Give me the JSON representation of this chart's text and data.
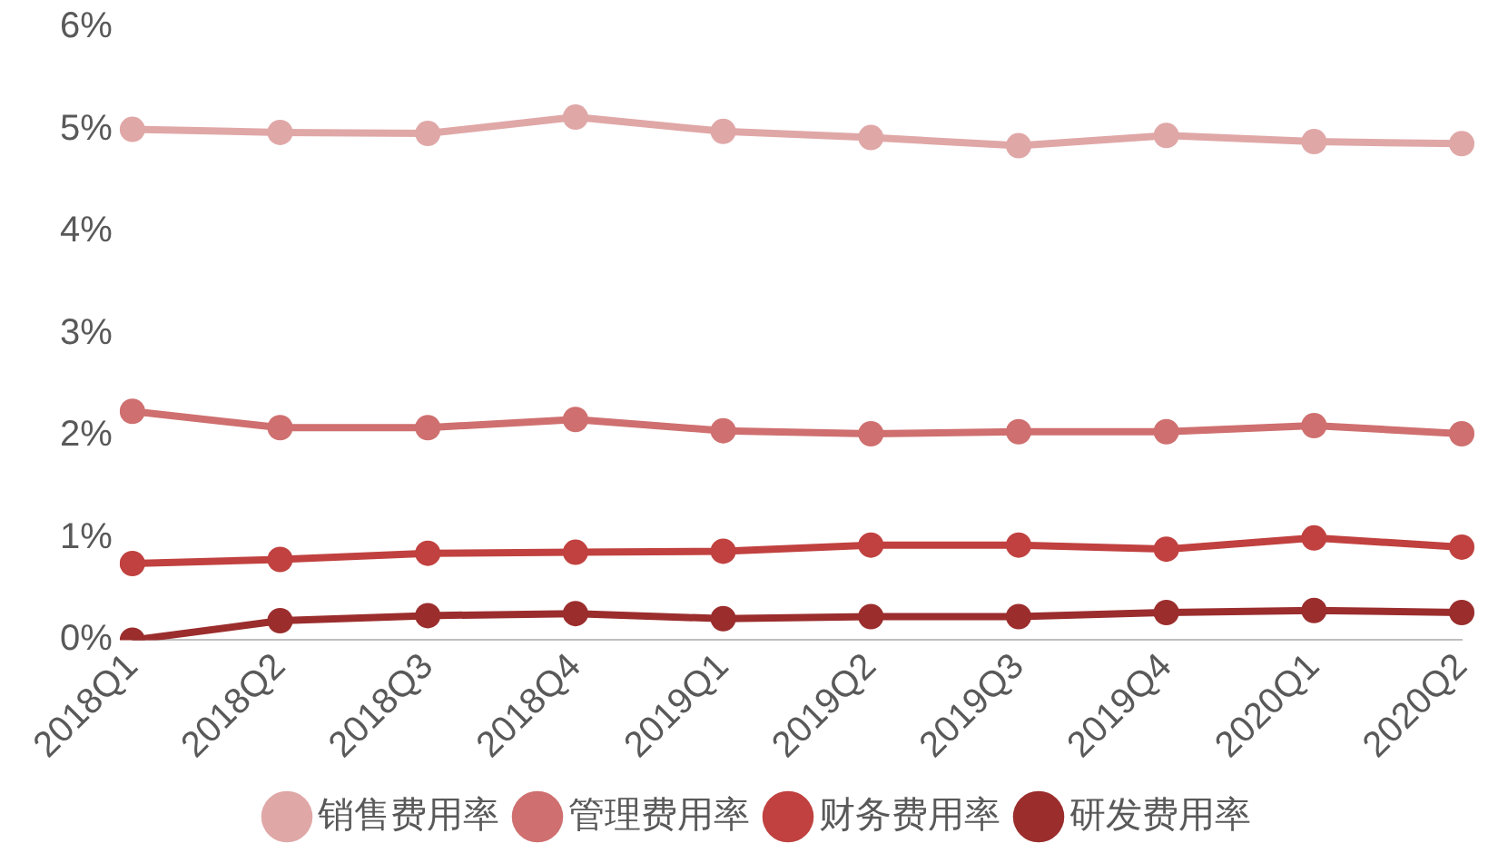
{
  "chart_data": {
    "type": "line",
    "categories": [
      "2018Q1",
      "2018Q2",
      "2018Q3",
      "2018Q4",
      "2019Q1",
      "2019Q2",
      "2019Q3",
      "2019Q4",
      "2020Q1",
      "2020Q2"
    ],
    "series": [
      {
        "name": "销售费用率",
        "color": "#e0a7a7",
        "values": [
          5.0,
          4.97,
          4.96,
          5.12,
          4.98,
          4.92,
          4.84,
          4.94,
          4.88,
          4.86
        ]
      },
      {
        "name": "管理费用率",
        "color": "#cf6f6f",
        "values": [
          2.24,
          2.08,
          2.08,
          2.16,
          2.05,
          2.02,
          2.04,
          2.04,
          2.1,
          2.02
        ]
      },
      {
        "name": "财务费用率",
        "color": "#c0413f",
        "values": [
          0.75,
          0.79,
          0.85,
          0.86,
          0.87,
          0.93,
          0.93,
          0.89,
          1.0,
          0.91
        ]
      },
      {
        "name": "研发费用率",
        "color": "#9b2d2d",
        "values": [
          0,
          0.19,
          0.24,
          0.26,
          0.21,
          0.23,
          0.23,
          0.27,
          0.29,
          0.27
        ]
      }
    ],
    "ylim": [
      0,
      6
    ],
    "yticks": [
      {
        "value": 0,
        "label": "0%"
      },
      {
        "value": 1,
        "label": "1%"
      },
      {
        "value": 2,
        "label": "2%"
      },
      {
        "value": 3,
        "label": "3%"
      },
      {
        "value": 4,
        "label": "4%"
      },
      {
        "value": 5,
        "label": "5%"
      },
      {
        "value": 6,
        "label": "6%"
      }
    ],
    "grid": false,
    "legend": "bottom",
    "marker": "circle",
    "line_style": "solid"
  }
}
